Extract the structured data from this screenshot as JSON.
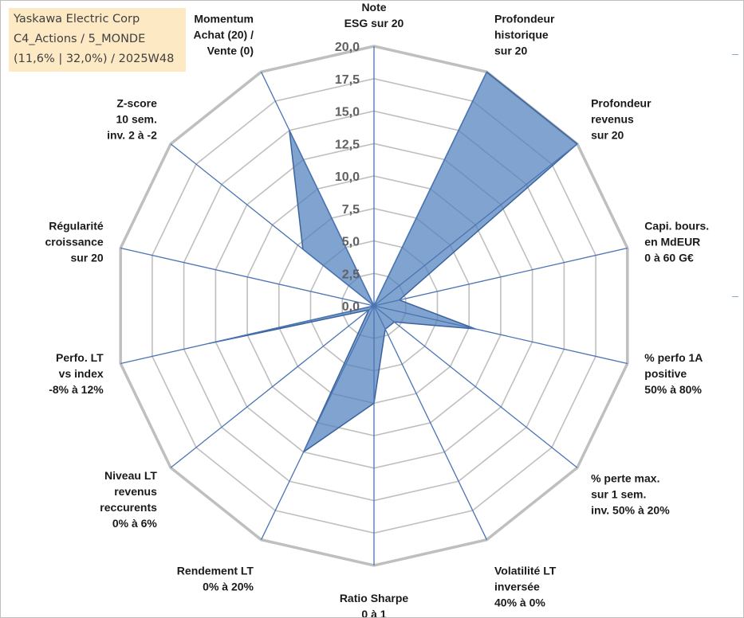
{
  "info": {
    "company": "Yaskawa Electric Corp",
    "portfolio": "C4_Actions / 5_MONDE",
    "params": "(11,6% | 32,0%) / 2025W48"
  },
  "chart_data": {
    "type": "radar",
    "title": "",
    "rmin": 0,
    "rmax": 20,
    "ticks": [
      "0,0",
      "2,5",
      "5,0",
      "7,5",
      "10,0",
      "12,5",
      "15,0",
      "17,5",
      "20,0"
    ],
    "categories": [
      [
        "Note",
        "ESG sur 20"
      ],
      [
        "Profondeur",
        "historique",
        "sur 20"
      ],
      [
        "Profondeur",
        "revenus",
        "sur 20"
      ],
      [
        "Capi. bours.",
        "en MdEUR",
        "0 à 60 G€"
      ],
      [
        "% perfo 1A",
        "positive",
        "50% à 80%"
      ],
      [
        "% perte max.",
        "sur 1 sem.",
        "inv. 50% à 20%"
      ],
      [
        "Volatilité LT",
        "inversée",
        "40% à 0%"
      ],
      [
        "Ratio Sharpe",
        "0 à 1"
      ],
      [
        "Rendement LT",
        "0% à 20%"
      ],
      [
        "Niveau LT",
        "revenus",
        "reccurents",
        "0% à 6%"
      ],
      [
        "Perfo. LT",
        "vs index",
        "-8% à 12%"
      ],
      [
        "Régularité",
        "croissance",
        "sur 20"
      ],
      [
        "Z-score",
        "10 sem.",
        "inv. 2 à -2"
      ],
      [
        "Momentum",
        "Achat (20) /",
        "Vente (0)"
      ]
    ],
    "series": [
      {
        "name": "Yaskawa Electric Corp",
        "color": "#4f81bd",
        "values": [
          0,
          20,
          20,
          2,
          8,
          2,
          2,
          7.5,
          12.5,
          0.5,
          13,
          0,
          7,
          15
        ]
      }
    ],
    "grid_color": "#bfbfbf",
    "spoke_color": "#4a74b4"
  }
}
